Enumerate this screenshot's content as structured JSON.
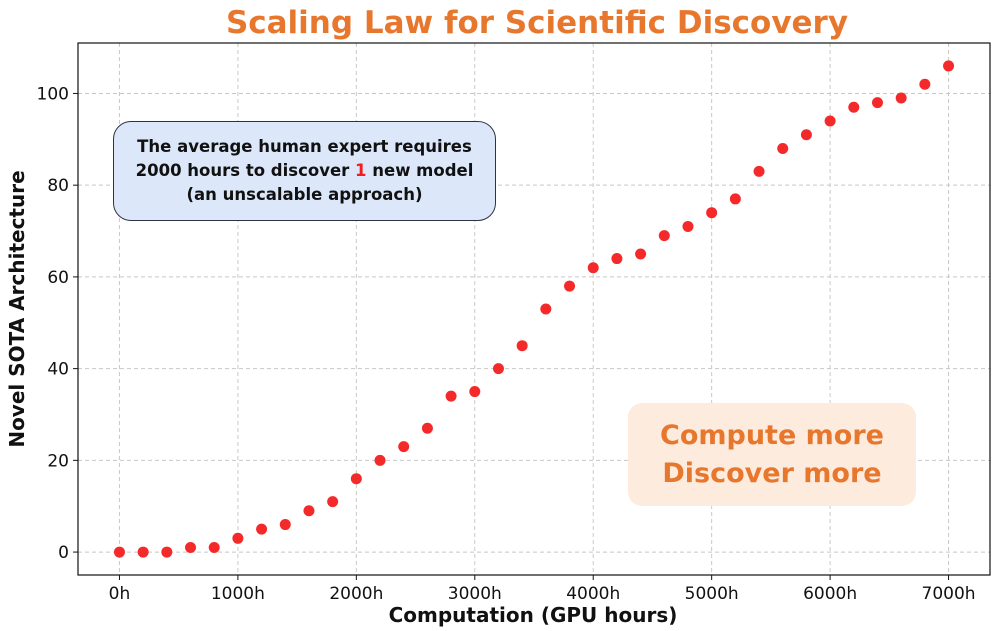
{
  "chart_data": {
    "type": "scatter",
    "title": "Scaling Law for Scientific Discovery",
    "xlabel": "Computation (GPU hours)",
    "ylabel": "Novel SOTA Architecture",
    "xlim": [
      -350,
      7350
    ],
    "ylim": [
      -5,
      111
    ],
    "xticks": [
      0,
      1000,
      2000,
      3000,
      4000,
      5000,
      6000,
      7000
    ],
    "xtick_labels": [
      "0h",
      "1000h",
      "2000h",
      "3000h",
      "4000h",
      "5000h",
      "6000h",
      "7000h"
    ],
    "yticks": [
      0,
      20,
      40,
      60,
      80,
      100
    ],
    "ytick_labels": [
      "0",
      "20",
      "40",
      "60",
      "80",
      "100"
    ],
    "grid": true,
    "marker_color": "#F42A2A",
    "x": [
      0,
      200,
      400,
      600,
      800,
      1000,
      1200,
      1400,
      1600,
      1800,
      2000,
      2200,
      2400,
      2600,
      2800,
      3000,
      3200,
      3400,
      3600,
      3800,
      4000,
      4200,
      4400,
      4600,
      4800,
      5000,
      5200,
      5400,
      5600,
      5800,
      6000,
      6200,
      6400,
      6600,
      6800,
      7000
    ],
    "y": [
      0,
      0,
      0,
      1,
      1,
      3,
      5,
      6,
      9,
      11,
      16,
      20,
      23,
      27,
      34,
      35,
      40,
      45,
      53,
      58,
      62,
      64,
      65,
      69,
      71,
      74,
      77,
      83,
      88,
      91,
      94,
      97,
      98,
      99,
      102,
      106
    ]
  },
  "annotations": {
    "expert_line1": "The average human expert requires",
    "expert_line2_pre": "2000 hours to discover ",
    "expert_line2_num": "1",
    "expert_line2_post": " new model",
    "expert_line3": "(an unscalable approach)",
    "slogan_line1": "Compute more",
    "slogan_line2": "Discover more"
  },
  "colors": {
    "title": "#E8772E",
    "expert_box": "#DCE8FA",
    "slogan_box": "#FDEBDD",
    "highlight": "#F01E1E"
  }
}
